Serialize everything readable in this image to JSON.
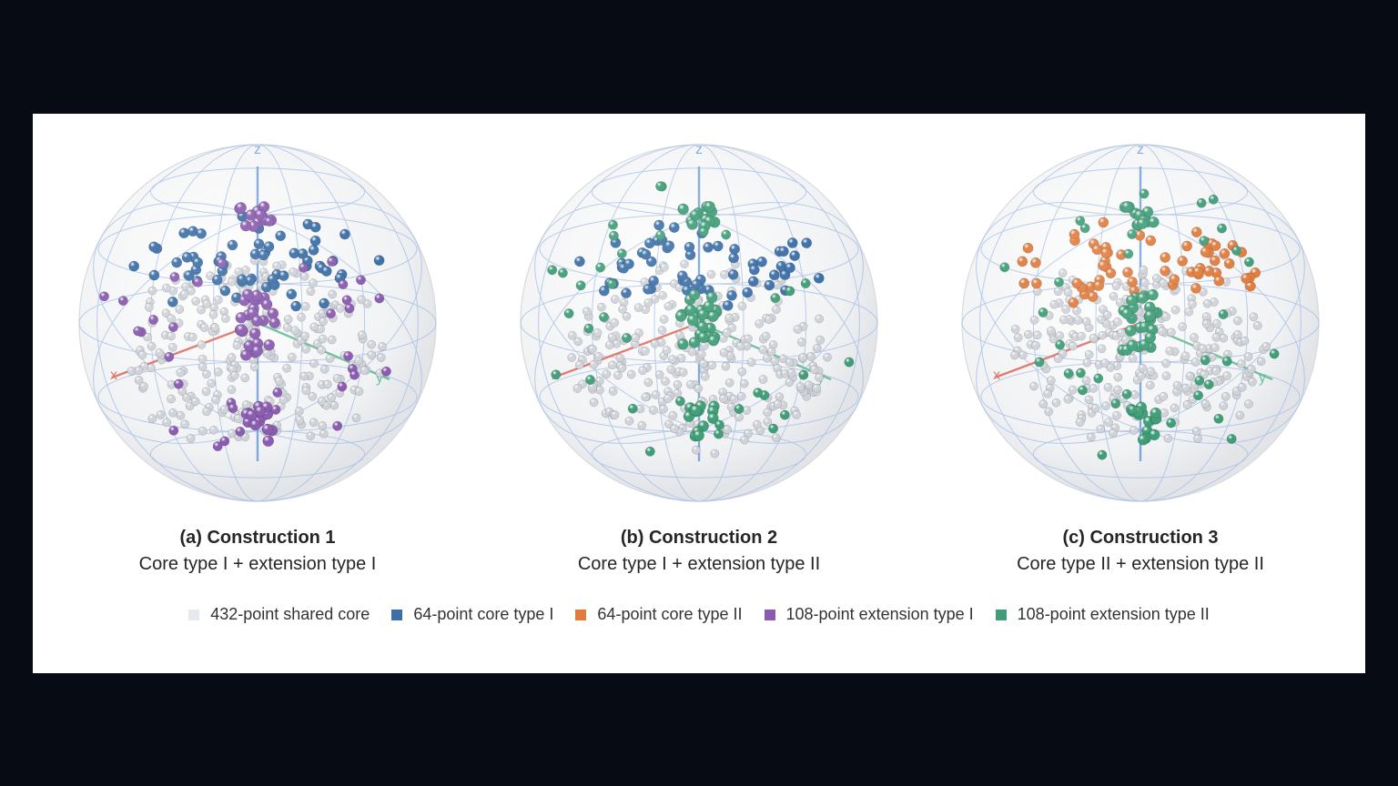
{
  "axis_labels": {
    "x": "x",
    "y": "y",
    "z": "z"
  },
  "panels": [
    {
      "id": "a",
      "title": "(a) Construction 1",
      "subtitle": "Core type I + extension type I",
      "core": "core_type_I",
      "extension": "extension_type_I"
    },
    {
      "id": "b",
      "title": "(b) Construction 2",
      "subtitle": "Core type I + extension type II",
      "core": "core_type_I",
      "extension": "extension_type_II"
    },
    {
      "id": "c",
      "title": "(c) Construction 3",
      "subtitle": "Core type II + extension type II",
      "core": "core_type_II",
      "extension": "extension_type_II"
    }
  ],
  "legend": [
    {
      "key": "shared_core",
      "label": "432-point shared core",
      "color": "#e6e9ee"
    },
    {
      "key": "core_type_I",
      "label": "64-point core type I",
      "color": "#3b6fa8"
    },
    {
      "key": "core_type_II",
      "label": "64-point core type II",
      "color": "#e07b3c"
    },
    {
      "key": "extension_type_I",
      "label": "108-point extension type I",
      "color": "#8a5bb0"
    },
    {
      "key": "extension_type_II",
      "label": "108-point extension type II",
      "color": "#3f9e78"
    }
  ],
  "colors": {
    "background": "#060b14",
    "frame": "#ffffff",
    "sphere_grid": "#aac2e6",
    "x_axis": "#e0766d",
    "y_axis": "#6fc09c",
    "z_axis": "#7ea8dc"
  }
}
